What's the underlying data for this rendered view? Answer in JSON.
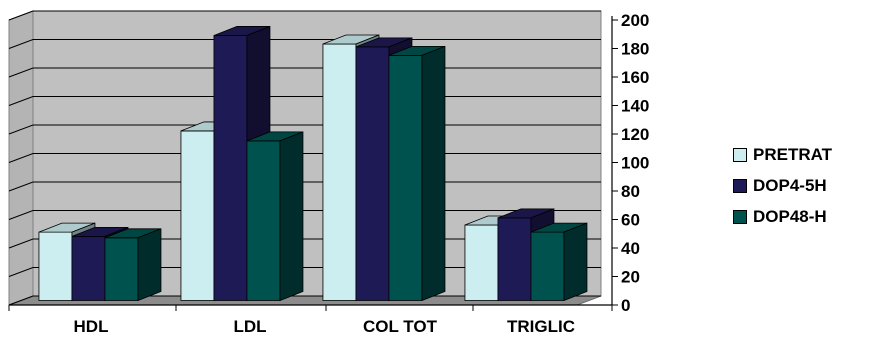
{
  "chart_data": {
    "type": "bar",
    "categories": [
      "HDL",
      "LDL",
      "COL TOT",
      "TRIGLIC"
    ],
    "series": [
      {
        "name": "PRETRAT",
        "values": [
          48,
          119,
          180,
          53
        ],
        "color": "#cdeef0"
      },
      {
        "name": "DOP4-5H",
        "values": [
          45,
          186,
          178,
          58
        ],
        "color": "#1e1a55"
      },
      {
        "name": "DOP48-H",
        "values": [
          44,
          112,
          172,
          48
        ],
        "color": "#00524e"
      }
    ],
    "ylim": [
      0,
      200
    ],
    "yticks": [
      "0",
      "20",
      "40",
      "60",
      "80",
      "100",
      "120",
      "140",
      "160",
      "180",
      "200"
    ],
    "grid": true,
    "legend": "right",
    "wall_color": "#c0c0c0"
  }
}
